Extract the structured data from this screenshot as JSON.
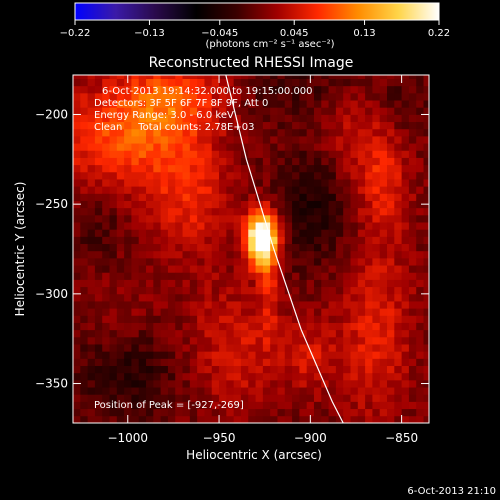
{
  "chart_data": {
    "type": "heatmap",
    "title": "Reconstructed RHESSI Image",
    "xlabel": "Heliocentric X (arcsec)",
    "ylabel": "Heliocentric Y (arcsec)",
    "xlim": [
      -1030,
      -835
    ],
    "ylim": [
      -372,
      -178
    ],
    "x_ticks": [
      -1000,
      -950,
      -900,
      -850
    ],
    "y_ticks": [
      -200,
      -250,
      -300,
      -350
    ],
    "x_tick_labels": [
      "−1000",
      "−950",
      "−900",
      "−850"
    ],
    "y_tick_labels": [
      "−200",
      "−250",
      "−300",
      "−350"
    ],
    "colorbar": {
      "range": [
        -0.22,
        0.22
      ],
      "ticks": [
        -0.22,
        -0.13,
        -0.045,
        0.045,
        0.13,
        0.22
      ],
      "tick_labels": [
        "−0.22",
        "−0.13",
        "−0.045",
        "0.045",
        "0.13",
        "0.22"
      ],
      "units_text": "(photons cm⁻² s⁻¹ asec⁻²)",
      "colors": [
        "#0000ff",
        "#3a1aa8",
        "#2a0a4a",
        "#000000",
        "#3a0000",
        "#a00000",
        "#ff2800",
        "#ff8c00",
        "#ffd54a",
        "#ffffff"
      ]
    },
    "annotations": [
      "6-Oct-2013 19:14:32.000 to 19:15:00.000",
      "Detectors: 3F 5F 6F 7F 8F 9F, Att 0",
      "Energy Range: 3.0 - 6.0 keV",
      "Clean     Total counts: 2.78E+03"
    ],
    "peak_label": "Position of Peak = [-927,-269]",
    "peak": {
      "x": -927,
      "y": -269,
      "value": 0.22
    },
    "limb_curve": [
      [
        -947,
        -175
      ],
      [
        -935,
        -225
      ],
      [
        -920,
        -275
      ],
      [
        -905,
        -320
      ],
      [
        -888,
        -360
      ],
      [
        -882,
        -372
      ]
    ],
    "sources": [
      {
        "x": -927,
        "y": -269,
        "sx": 6,
        "sy": 10,
        "amp": 0.26
      },
      {
        "x": -923,
        "y": -290,
        "sx": 4,
        "sy": 22,
        "amp": 0.05
      },
      {
        "x": -1005,
        "y": -215,
        "sx": 25,
        "sy": 22,
        "amp": 0.09
      },
      {
        "x": -975,
        "y": -190,
        "sx": 20,
        "sy": 15,
        "amp": 0.08
      },
      {
        "x": -965,
        "y": -245,
        "sx": 15,
        "sy": 25,
        "amp": 0.06
      },
      {
        "x": -940,
        "y": -330,
        "sx": 20,
        "sy": 25,
        "amp": 0.05
      },
      {
        "x": -1010,
        "y": -300,
        "sx": 15,
        "sy": 20,
        "amp": 0.02
      },
      {
        "x": -880,
        "y": -215,
        "sx": 18,
        "sy": 25,
        "amp": 0.05
      },
      {
        "x": -860,
        "y": -240,
        "sx": 10,
        "sy": 20,
        "amp": 0.05
      },
      {
        "x": -865,
        "y": -320,
        "sx": 15,
        "sy": 35,
        "amp": 0.06
      },
      {
        "x": -900,
        "y": -335,
        "sx": 10,
        "sy": 15,
        "amp": 0.04
      },
      {
        "x": -1000,
        "y": -345,
        "sx": 20,
        "sy": 15,
        "amp": -0.04
      },
      {
        "x": -1015,
        "y": -260,
        "sx": 10,
        "sy": 25,
        "amp": -0.03
      },
      {
        "x": -895,
        "y": -245,
        "sx": 15,
        "sy": 25,
        "amp": -0.06
      },
      {
        "x": -900,
        "y": -185,
        "sx": 25,
        "sy": 12,
        "amp": -0.03
      },
      {
        "x": -850,
        "y": -195,
        "sx": 10,
        "sy": 12,
        "amp": -0.02
      }
    ]
  },
  "timestamp": "6-Oct-2013 21:10"
}
